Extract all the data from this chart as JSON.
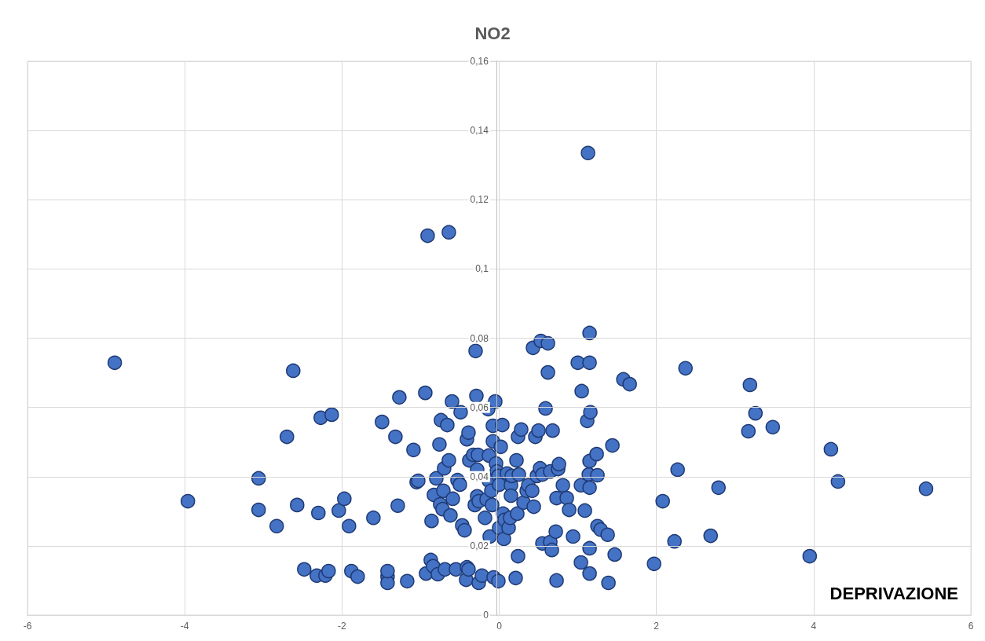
{
  "chart_data": {
    "type": "scatter",
    "title": "NO2",
    "xlabel": "DEPRIVAZIONE",
    "x": [
      -4.89,
      -3.96,
      -3.06,
      -3.06,
      -2.83,
      -2.62,
      -2.7,
      -2.57,
      -2.48,
      -2.32,
      -2.3,
      -2.27,
      -2.21,
      -2.17,
      -2.13,
      -2.04,
      -1.97,
      -1.91,
      -1.88,
      -1.8,
      -1.6,
      -1.49,
      -1.42,
      -1.42,
      -1.42,
      -1.32,
      -1.29,
      -1.27,
      -1.17,
      -1.09,
      -1.05,
      -1.03,
      -0.94,
      -0.91,
      -0.64,
      -0.93,
      -0.87,
      -0.86,
      -0.84,
      -0.83,
      -0.8,
      -0.78,
      -0.76,
      -0.75,
      -0.74,
      -0.72,
      -0.7,
      -0.71,
      -0.69,
      -0.66,
      -0.64,
      -0.62,
      -0.6,
      -0.59,
      -0.55,
      -0.53,
      -0.5,
      -0.49,
      -0.47,
      -0.44,
      -0.42,
      -0.41,
      -0.41,
      -0.39,
      -0.38,
      -0.39,
      -0.33,
      -0.31,
      -0.3,
      -0.29,
      -0.28,
      -0.28,
      -0.27,
      -0.26,
      -0.26,
      -0.22,
      -0.18,
      -0.16,
      -0.14,
      -0.13,
      -0.13,
      -0.12,
      -0.1,
      -0.09,
      -0.08,
      -0.08,
      -0.07,
      -0.05,
      -0.04,
      -0.03,
      -0.01,
      -0.01,
      0.0,
      0.0,
      0.02,
      0.04,
      0.05,
      0.06,
      0.07,
      0.1,
      0.12,
      0.14,
      0.15,
      0.15,
      0.16,
      0.21,
      0.22,
      0.23,
      0.24,
      0.24,
      0.25,
      0.28,
      0.31,
      0.35,
      0.37,
      0.42,
      0.43,
      0.44,
      0.46,
      0.48,
      0.5,
      0.53,
      0.52,
      0.55,
      0.55,
      0.59,
      0.62,
      0.62,
      0.65,
      0.67,
      0.68,
      0.65,
      0.72,
      0.73,
      0.73,
      0.75,
      0.76,
      0.81,
      0.86,
      0.89,
      0.94,
      1.0,
      1.04,
      1.04,
      1.05,
      1.09,
      1.12,
      1.13,
      1.14,
      1.15,
      1.15,
      1.16,
      1.15,
      1.15,
      1.15,
      1.15,
      1.24,
      1.25,
      1.25,
      1.29,
      1.38,
      1.39,
      1.44,
      1.47,
      1.58,
      1.66,
      1.97,
      2.08,
      2.23,
      2.27,
      2.37,
      2.69,
      2.79,
      3.17,
      3.19,
      3.26,
      3.48,
      3.95,
      4.22,
      4.31,
      5.43
    ],
    "values": [
      0.0729,
      0.0329,
      0.0395,
      0.0304,
      0.0257,
      0.0706,
      0.0515,
      0.0318,
      0.0132,
      0.0114,
      0.0295,
      0.057,
      0.0114,
      0.0127,
      0.0579,
      0.0302,
      0.0336,
      0.0257,
      0.0127,
      0.0111,
      0.0281,
      0.0558,
      0.0111,
      0.0093,
      0.0127,
      0.0515,
      0.0316,
      0.0629,
      0.0098,
      0.0477,
      0.0384,
      0.0388,
      0.0642,
      0.1096,
      0.1106,
      0.012,
      0.0159,
      0.0272,
      0.0141,
      0.0347,
      0.0395,
      0.0118,
      0.0493,
      0.032,
      0.0563,
      0.0306,
      0.0424,
      0.0359,
      0.0132,
      0.0549,
      0.0447,
      0.0288,
      0.0617,
      0.0336,
      0.0132,
      0.039,
      0.0377,
      0.0586,
      0.0259,
      0.0245,
      0.0102,
      0.0138,
      0.0508,
      0.0527,
      0.0447,
      0.0132,
      0.0463,
      0.0318,
      0.0763,
      0.0633,
      0.0343,
      0.042,
      0.0463,
      0.0329,
      0.0093,
      0.0114,
      0.0281,
      0.0334,
      0.0595,
      0.0388,
      0.0461,
      0.0227,
      0.0359,
      0.0318,
      0.0547,
      0.0502,
      0.0109,
      0.0617,
      0.0438,
      0.0415,
      0.0402,
      0.0098,
      0.0377,
      0.0252,
      0.0486,
      0.0549,
      0.0293,
      0.022,
      0.0275,
      0.0409,
      0.0252,
      0.0281,
      0.0375,
      0.0345,
      0.0402,
      0.0107,
      0.0447,
      0.0293,
      0.017,
      0.0515,
      0.0406,
      0.0536,
      0.0325,
      0.0359,
      0.0375,
      0.0359,
      0.0772,
      0.0313,
      0.0515,
      0.0402,
      0.0533,
      0.0792,
      0.0424,
      0.0406,
      0.0207,
      0.0597,
      0.0785,
      0.0701,
      0.0211,
      0.0188,
      0.0533,
      0.0415,
      0.0241,
      0.0338,
      0.01,
      0.0422,
      0.0436,
      0.0375,
      0.0338,
      0.0304,
      0.0227,
      0.0729,
      0.0152,
      0.0375,
      0.0647,
      0.0302,
      0.0561,
      0.1335,
      0.0406,
      0.0815,
      0.0729,
      0.0586,
      0.0445,
      0.0368,
      0.0193,
      0.012,
      0.0465,
      0.0404,
      0.0257,
      0.0247,
      0.0232,
      0.0093,
      0.049,
      0.0175,
      0.0681,
      0.0667,
      0.0148,
      0.0329,
      0.0213,
      0.042,
      0.0713,
      0.0229,
      0.0368,
      0.0531,
      0.0665,
      0.0583,
      0.0543,
      0.017,
      0.0479,
      0.0386,
      0.0365
    ],
    "color": "#4472c4",
    "marker": "circle",
    "grid": true,
    "xlim": [
      -6,
      6
    ],
    "xticks": [
      -6,
      -4,
      -2,
      0,
      2,
      4,
      6
    ],
    "ylim": [
      0,
      0.16
    ],
    "yticks": [
      0,
      {
        "value": 0.02,
        "label": "0,02"
      },
      {
        "value": 0.04,
        "label": "0,04"
      },
      {
        "value": 0.06,
        "label": "0,06"
      },
      {
        "value": 0.08,
        "label": "0,08"
      },
      {
        "value": 0.1,
        "label": "0,1"
      },
      {
        "value": 0.12,
        "label": "0,12"
      },
      {
        "value": 0.14,
        "label": "0,14"
      },
      {
        "value": 0.16,
        "label": "0,16"
      }
    ]
  }
}
